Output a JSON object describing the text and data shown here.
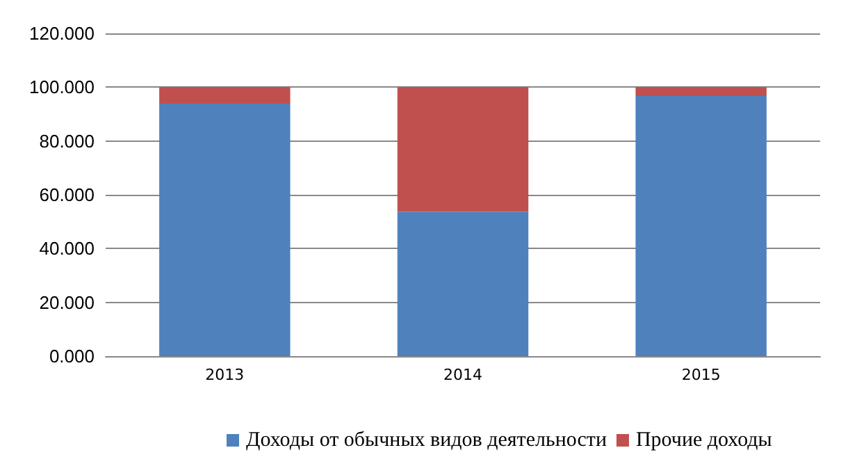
{
  "chart_data": {
    "type": "bar",
    "stacked": true,
    "categories": [
      "2013",
      "2014",
      "2015"
    ],
    "series": [
      {
        "name": "Доходы от обычных видов деятельности",
        "color": "#4f81bd",
        "values": [
          93.9,
          53.7,
          96.7
        ]
      },
      {
        "name": "Прочие доходы",
        "color": "#c0504d",
        "values": [
          6.1,
          46.3,
          3.3
        ]
      }
    ],
    "ylim": [
      0,
      120
    ],
    "yticks": [
      {
        "value": 0,
        "label": "0.000"
      },
      {
        "value": 20,
        "label": "20.000"
      },
      {
        "value": 40,
        "label": "40.000"
      },
      {
        "value": 60,
        "label": "60.000"
      },
      {
        "value": 80,
        "label": "80.000"
      },
      {
        "value": 100,
        "label": "100.000"
      },
      {
        "value": 120,
        "label": "120.000"
      }
    ],
    "grid": "y",
    "legend": "bottom"
  }
}
